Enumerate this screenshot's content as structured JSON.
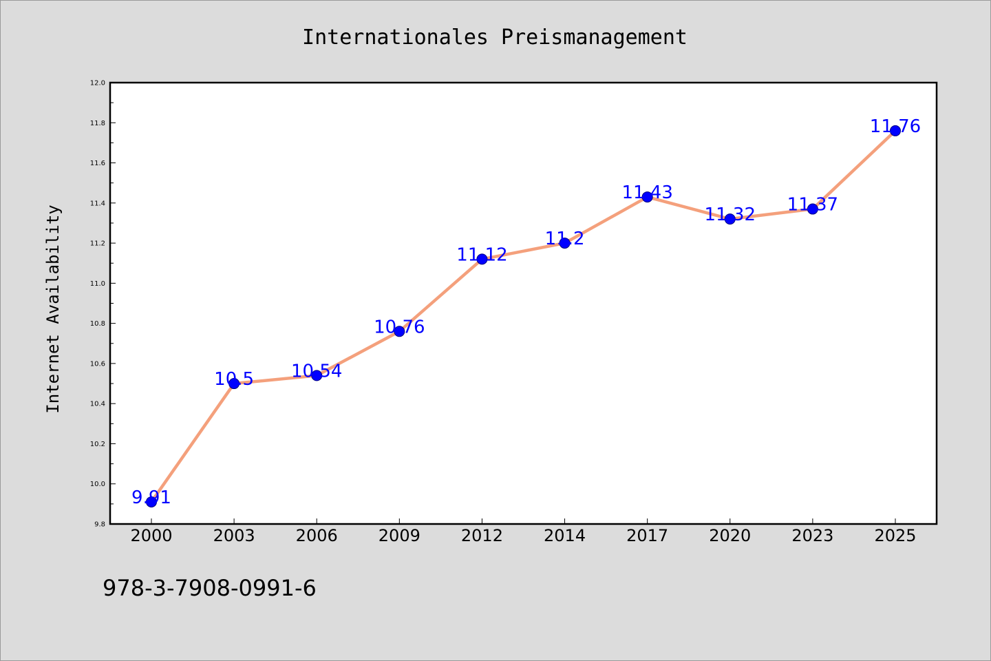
{
  "colors": {
    "figure_bg": "#dcdcdc",
    "plot_bg": "#ffffff",
    "line": "#f4a07c",
    "marker_fill": "#0000ff",
    "marker_edge": "#000080",
    "data_label": "#0000ff"
  },
  "chart_data": {
    "type": "line",
    "title": "Internationales Preismanagement",
    "xlabel": "",
    "ylabel": "Internet Availability",
    "categories": [
      "2000",
      "2003",
      "2006",
      "2009",
      "2012",
      "2014",
      "2017",
      "2020",
      "2023",
      "2025"
    ],
    "series": [
      {
        "values": [
          9.91,
          10.5,
          10.54,
          10.76,
          11.12,
          11.2,
          11.43,
          11.32,
          11.37,
          11.76
        ]
      }
    ],
    "data_labels": [
      "9.91",
      "10.5",
      "10.54",
      "10.76",
      "11.12",
      "11.2",
      "11.43",
      "11.32",
      "11.37",
      "11.76"
    ],
    "ylim": [
      9.8,
      12.0
    ],
    "yticks": [
      "9.8",
      "10.0",
      "10.2",
      "10.4",
      "10.6",
      "10.8",
      "11.0",
      "11.2",
      "11.4",
      "11.6",
      "11.8",
      "12.0"
    ],
    "grid": false,
    "legend": "none"
  },
  "footer": {
    "isbn": "978-3-7908-0991-6"
  }
}
